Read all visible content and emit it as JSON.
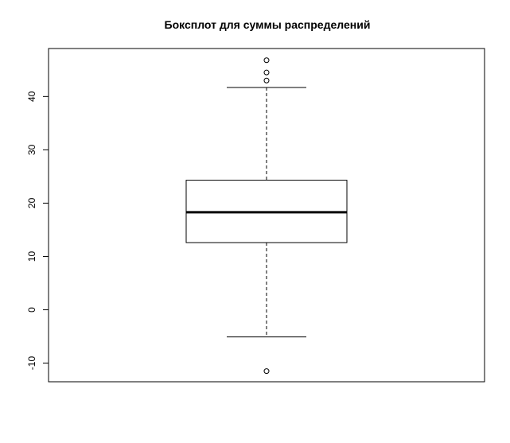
{
  "chart_data": {
    "type": "boxplot",
    "title": "Боксплот для суммы распределений",
    "xlabel": "",
    "ylabel": "",
    "ylim": [
      -13.5,
      49
    ],
    "yticks": [
      -10,
      0,
      10,
      20,
      30,
      40
    ],
    "ytick_labels": [
      "-10",
      "0",
      "10",
      "20",
      "30",
      "40"
    ],
    "box": {
      "whisker_low": -5.1,
      "q1": 12.6,
      "median": 18.3,
      "q3": 24.3,
      "whisker_high": 41.7
    },
    "outliers": [
      46.8,
      44.5,
      43.0,
      -11.5
    ],
    "grid": false,
    "legend": "none"
  }
}
